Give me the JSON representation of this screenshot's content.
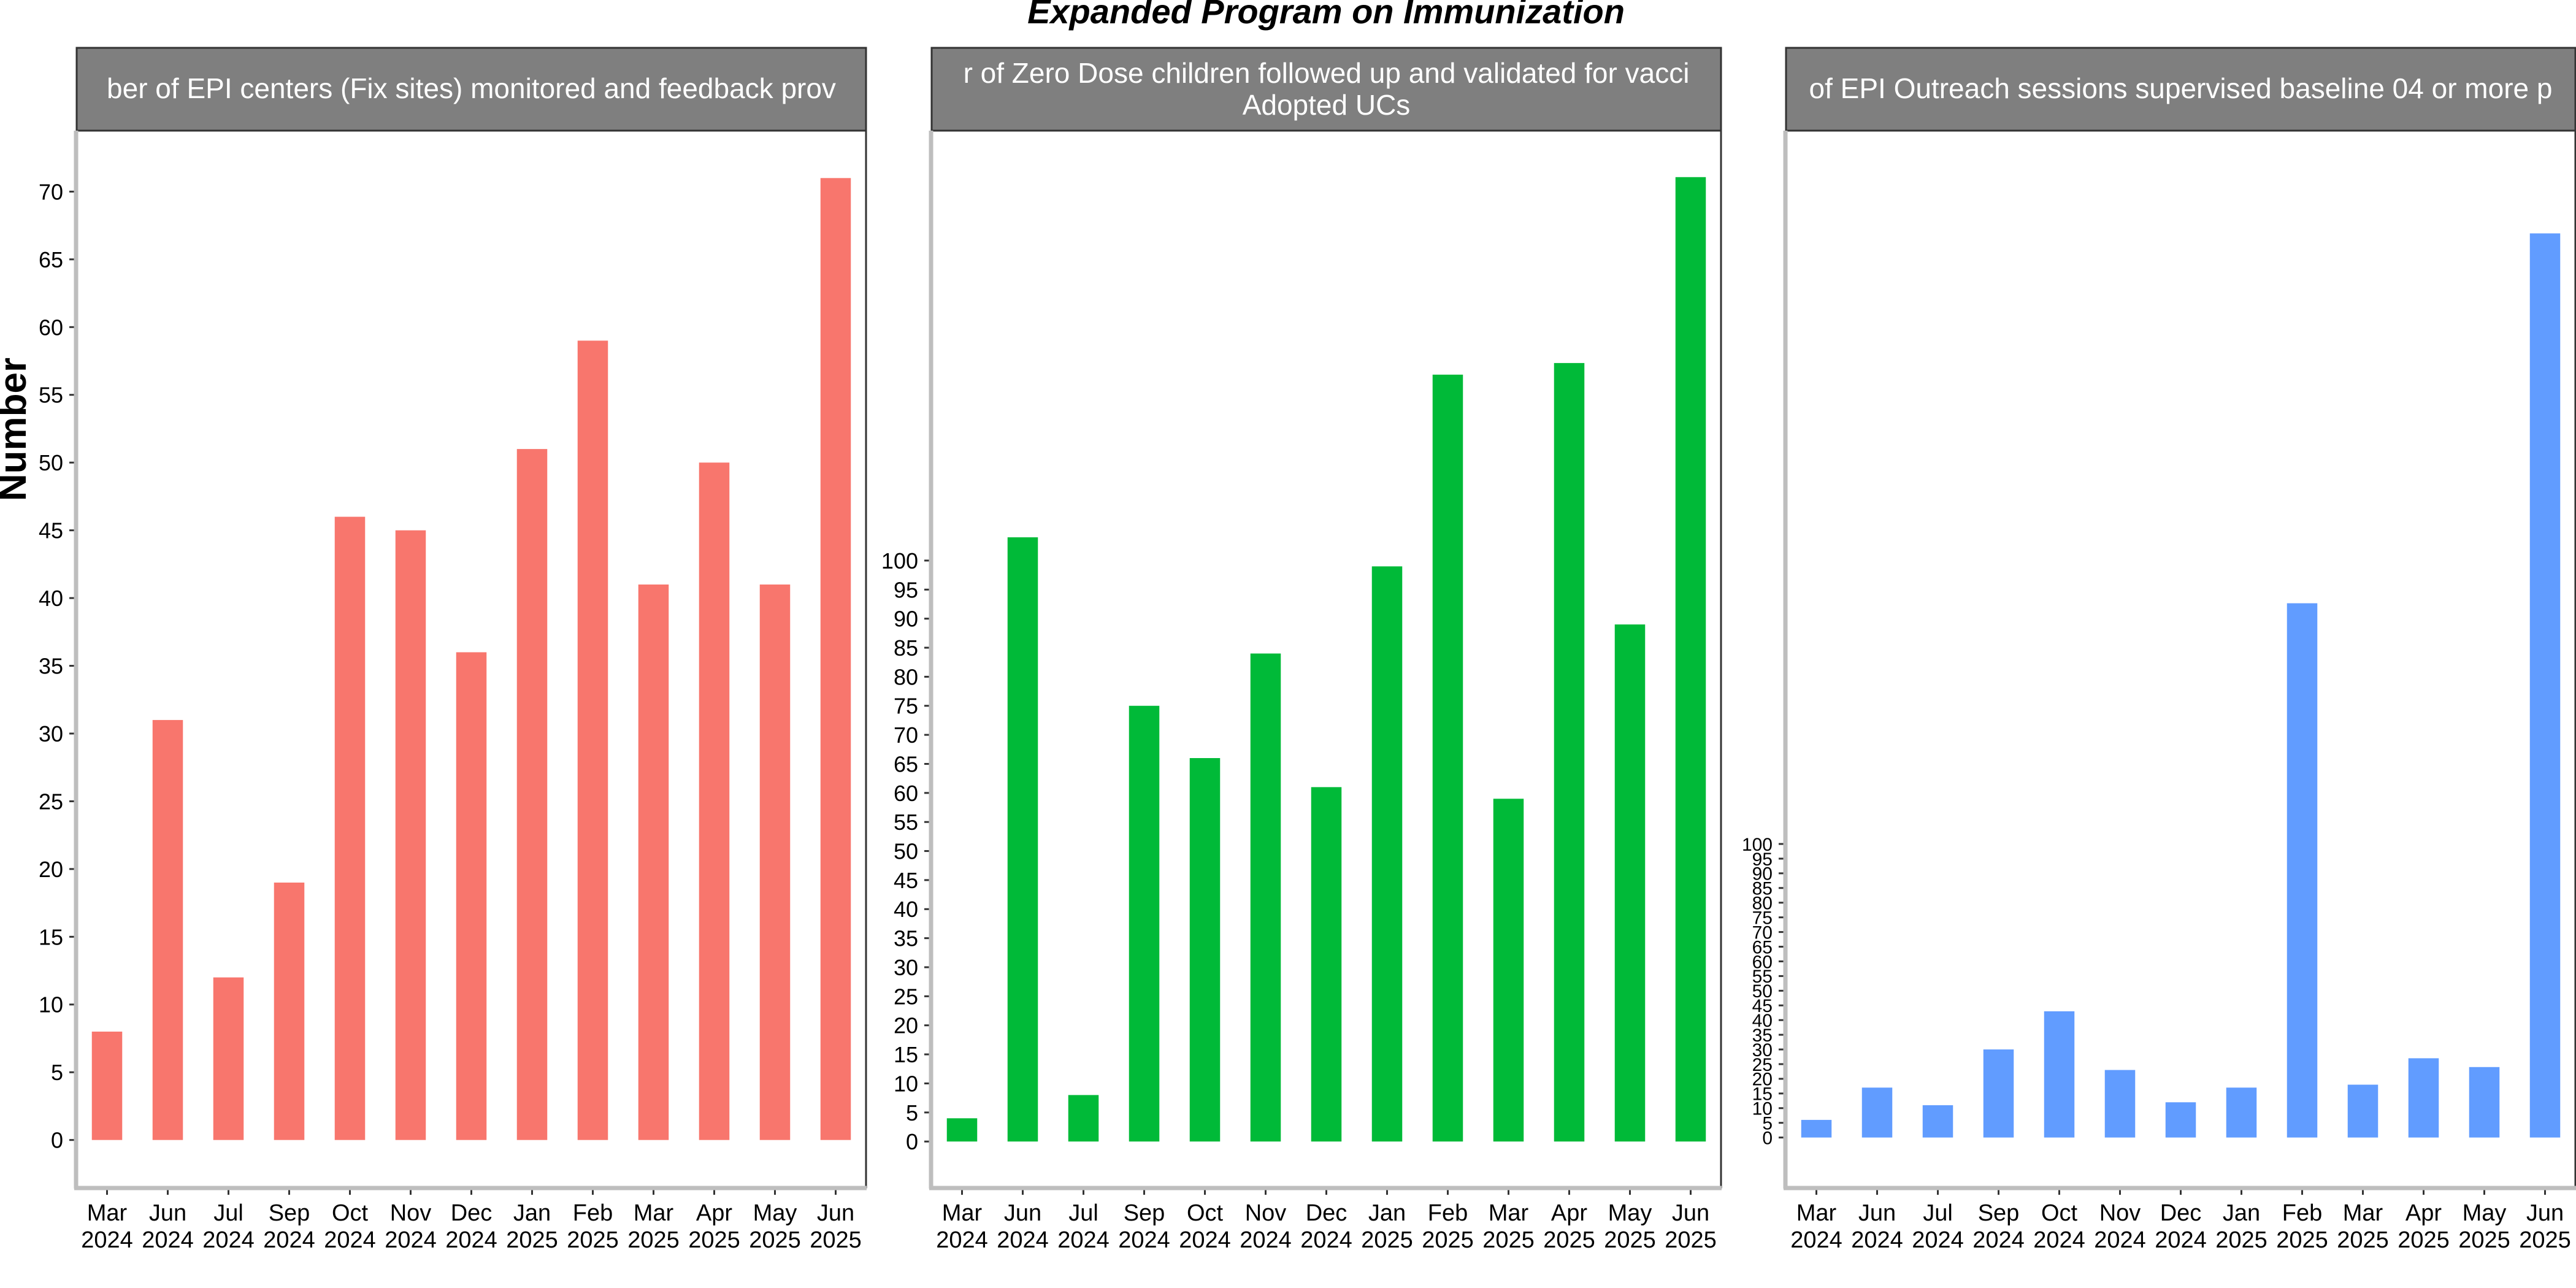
{
  "chart_data": {
    "type": "bar",
    "title": "Expanded Program on Immunization",
    "ylabel": "Number",
    "categories": [
      [
        "Mar",
        "2024"
      ],
      [
        "Jun",
        "2024"
      ],
      [
        "Jul",
        "2024"
      ],
      [
        "Sep",
        "2024"
      ],
      [
        "Oct",
        "2024"
      ],
      [
        "Nov",
        "2024"
      ],
      [
        "Dec",
        "2024"
      ],
      [
        "Jan",
        "2025"
      ],
      [
        "Feb",
        "2025"
      ],
      [
        "Mar",
        "2025"
      ],
      [
        "Apr",
        "2025"
      ],
      [
        "May",
        "2025"
      ],
      [
        "Jun",
        "2025"
      ]
    ],
    "panels": [
      {
        "strip": [
          "ber of EPI centers (Fix sites) monitored and feedback prov"
        ],
        "color": "#F8766D",
        "yticks": [
          0,
          5,
          10,
          15,
          20,
          25,
          30,
          35,
          40,
          45,
          50,
          55,
          60,
          65,
          70
        ],
        "ylim": [
          -3.5,
          74.5
        ],
        "values": [
          8,
          31,
          12,
          19,
          46,
          45,
          36,
          51,
          59,
          41,
          50,
          41,
          71
        ]
      },
      {
        "strip": [
          "r of Zero Dose children followed up and validated for vacci",
          "Adopted UCs"
        ],
        "color": "#00BA38",
        "yticks": [
          0,
          5,
          10,
          15,
          20,
          25,
          30,
          35,
          40,
          45,
          50,
          55,
          60,
          65,
          70,
          75,
          80,
          85,
          90,
          95,
          100
        ],
        "ylim": [
          -7.9,
          174
        ],
        "values": [
          4,
          104,
          8,
          75,
          66,
          84,
          61,
          99,
          132,
          59,
          134,
          89,
          166
        ]
      },
      {
        "strip": [
          "of EPI Outreach sessions supervised baseline 04 or more p"
        ],
        "color": "#619CFF",
        "yticks": [
          0,
          5,
          10,
          15,
          20,
          25,
          30,
          35,
          40,
          45,
          50,
          55,
          60,
          65,
          70,
          75,
          80,
          85,
          90,
          95,
          100
        ],
        "ylim": [
          -17,
          343
        ],
        "values": [
          6,
          17,
          11,
          30,
          43,
          23,
          12,
          17,
          182,
          18,
          27,
          24,
          308
        ]
      }
    ]
  }
}
